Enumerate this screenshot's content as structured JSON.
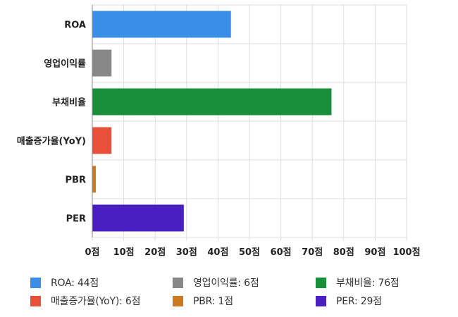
{
  "chart_data": {
    "type": "bar",
    "orientation": "horizontal",
    "categories": [
      "ROA",
      "영업이익률",
      "부채비율",
      "매출증가율(YoY)",
      "PBR",
      "PER"
    ],
    "values": [
      44,
      6,
      76,
      6,
      1,
      29
    ],
    "colors": [
      "#3b8ee6",
      "#888888",
      "#1a8f3a",
      "#e8503a",
      "#cc7a20",
      "#4a1fc0"
    ],
    "xlim": [
      0,
      100
    ],
    "x_ticks": [
      0,
      10,
      20,
      30,
      40,
      50,
      60,
      70,
      80,
      90,
      100
    ],
    "x_tick_labels": [
      "0점",
      "10점",
      "20점",
      "30점",
      "40점",
      "50점",
      "60점",
      "70점",
      "80점",
      "90점",
      "100점"
    ],
    "grid": true,
    "legend_position": "bottom",
    "legend": [
      "ROA: 44점",
      "영업이익률: 6점",
      "부채비율: 76점",
      "매출증가율(YoY): 6점",
      "PBR: 1점",
      "PER: 29점"
    ]
  }
}
